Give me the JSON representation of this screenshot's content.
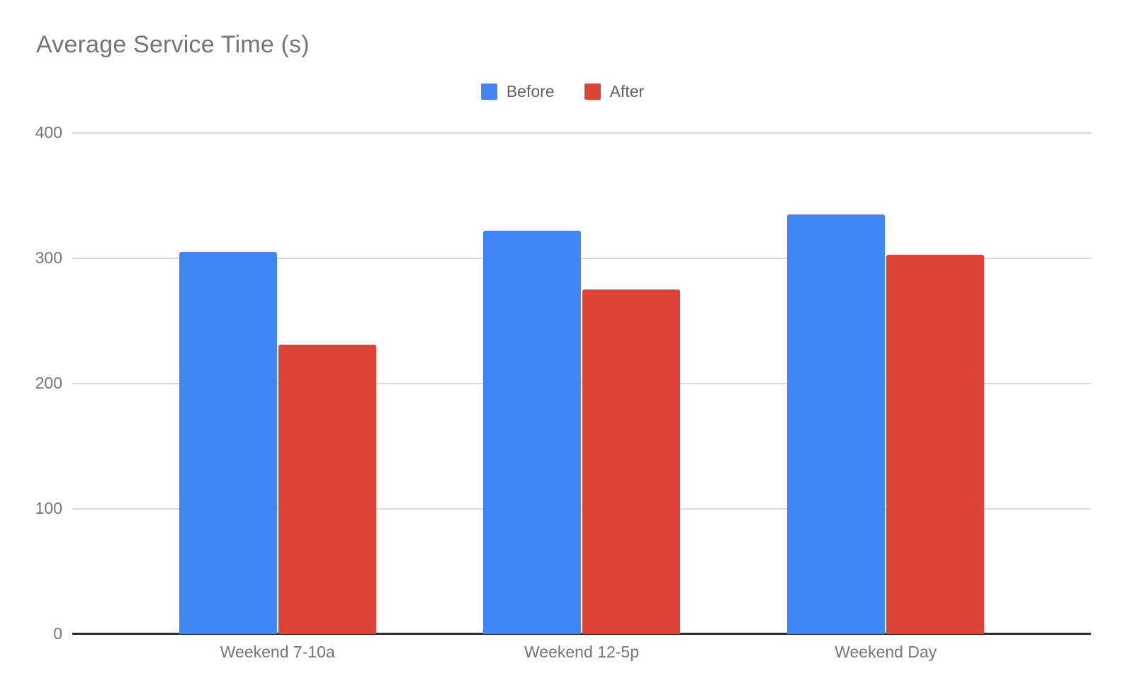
{
  "chart_data": {
    "type": "bar",
    "title": "Average Service Time (s)",
    "categories": [
      "Weekend 7-10a",
      "Weekend 12-5p",
      "Weekend Day"
    ],
    "series": [
      {
        "name": "Before",
        "color": "#4285f4",
        "values": [
          305,
          322,
          335
        ]
      },
      {
        "name": "After",
        "color": "#db4437",
        "values": [
          231,
          275,
          303
        ]
      }
    ],
    "xlabel": "",
    "ylabel": "",
    "ylim": [
      0,
      400
    ],
    "yticks": [
      0,
      100,
      200,
      300,
      400
    ],
    "grid": true,
    "legend_position": "top-center",
    "colors": {
      "title_text": "#757575",
      "axis_tick_text": "#757575",
      "legend_text": "#616161",
      "gridline": "#d9d9d9",
      "baseline": "#2e2e2e",
      "background": "#ffffff"
    }
  }
}
